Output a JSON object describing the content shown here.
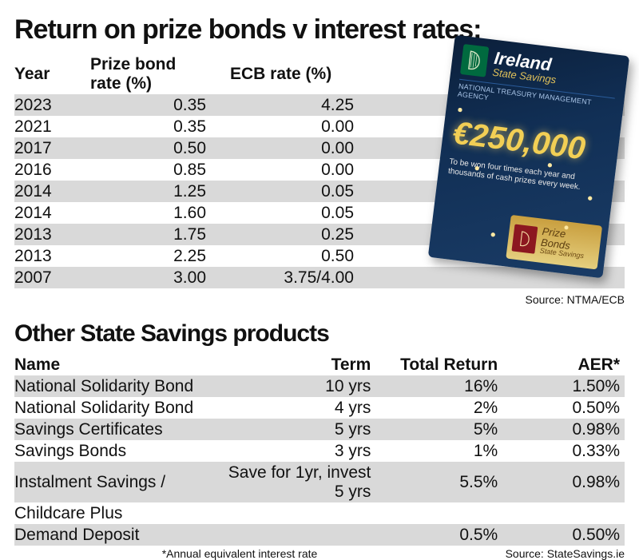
{
  "title1": "Return on prize bonds v interest rates:",
  "table1": {
    "headers": {
      "c1": "Year",
      "c2": "Prize bond rate (%)",
      "c3": "ECB rate (%)"
    },
    "rows": [
      {
        "year": "2023",
        "pbr": "0.35",
        "ecb": "4.25"
      },
      {
        "year": "2021",
        "pbr": "0.35",
        "ecb": "0.00"
      },
      {
        "year": "2017",
        "pbr": "0.50",
        "ecb": "0.00"
      },
      {
        "year": "2016",
        "pbr": "0.85",
        "ecb": "0.00"
      },
      {
        "year": "2014",
        "pbr": "1.25",
        "ecb": "0.05"
      },
      {
        "year": "2014",
        "pbr": "1.60",
        "ecb": "0.05"
      },
      {
        "year": "2013",
        "pbr": "1.75",
        "ecb": "0.25"
      },
      {
        "year": "2013",
        "pbr": "2.25",
        "ecb": "0.50"
      },
      {
        "year": "2007",
        "pbr": "3.00",
        "ecb": "3.75/4.00"
      }
    ],
    "source": "Source: NTMA/ECB"
  },
  "title2": "Other State Savings products",
  "table2": {
    "headers": {
      "d1": "Name",
      "d2": "Term",
      "d3": "Total Return",
      "d4": "AER*"
    },
    "rows": [
      {
        "name": "National Solidarity Bond",
        "term": "10 yrs",
        "ret": "16%",
        "aer": "1.50%"
      },
      {
        "name": "National Solidarity Bond",
        "term": "4 yrs",
        "ret": "2%",
        "aer": "0.50%"
      },
      {
        "name": "Savings Certificates",
        "term": "5 yrs",
        "ret": "5%",
        "aer": "0.98%"
      },
      {
        "name": "Savings Bonds",
        "term": "3 yrs",
        "ret": "1%",
        "aer": "0.33%"
      },
      {
        "name": "Instalment Savings /",
        "term": "Save for 1yr, invest 5 yrs",
        "ret": "5.5%",
        "aer": "0.98%"
      },
      {
        "name": "Childcare Plus",
        "term": "",
        "ret": "",
        "aer": ""
      },
      {
        "name": "Demand Deposit",
        "term": "",
        "ret": "0.5%",
        "aer": "0.50%"
      }
    ],
    "footnote": "*Annual equivalent interest rate",
    "source": "Source: StateSavings.ie"
  },
  "brochure": {
    "brand1": "Ireland",
    "brand2": "State Savings",
    "agency": "NATIONAL TREASURY MANAGEMENT AGENCY",
    "prize": "€250,000",
    "caption": "To be won four times each year and thousands of cash prizes every week.",
    "card1": "Prize Bonds",
    "card2": "State Savings"
  },
  "colors": {
    "stripe": "#d9d9d9",
    "brochure_bg_top": "#0b1f3a",
    "brochure_bg_bottom": "#1a3c66",
    "gold": "#f2cf55",
    "green": "#006a3f",
    "maroon": "#8c1720"
  }
}
